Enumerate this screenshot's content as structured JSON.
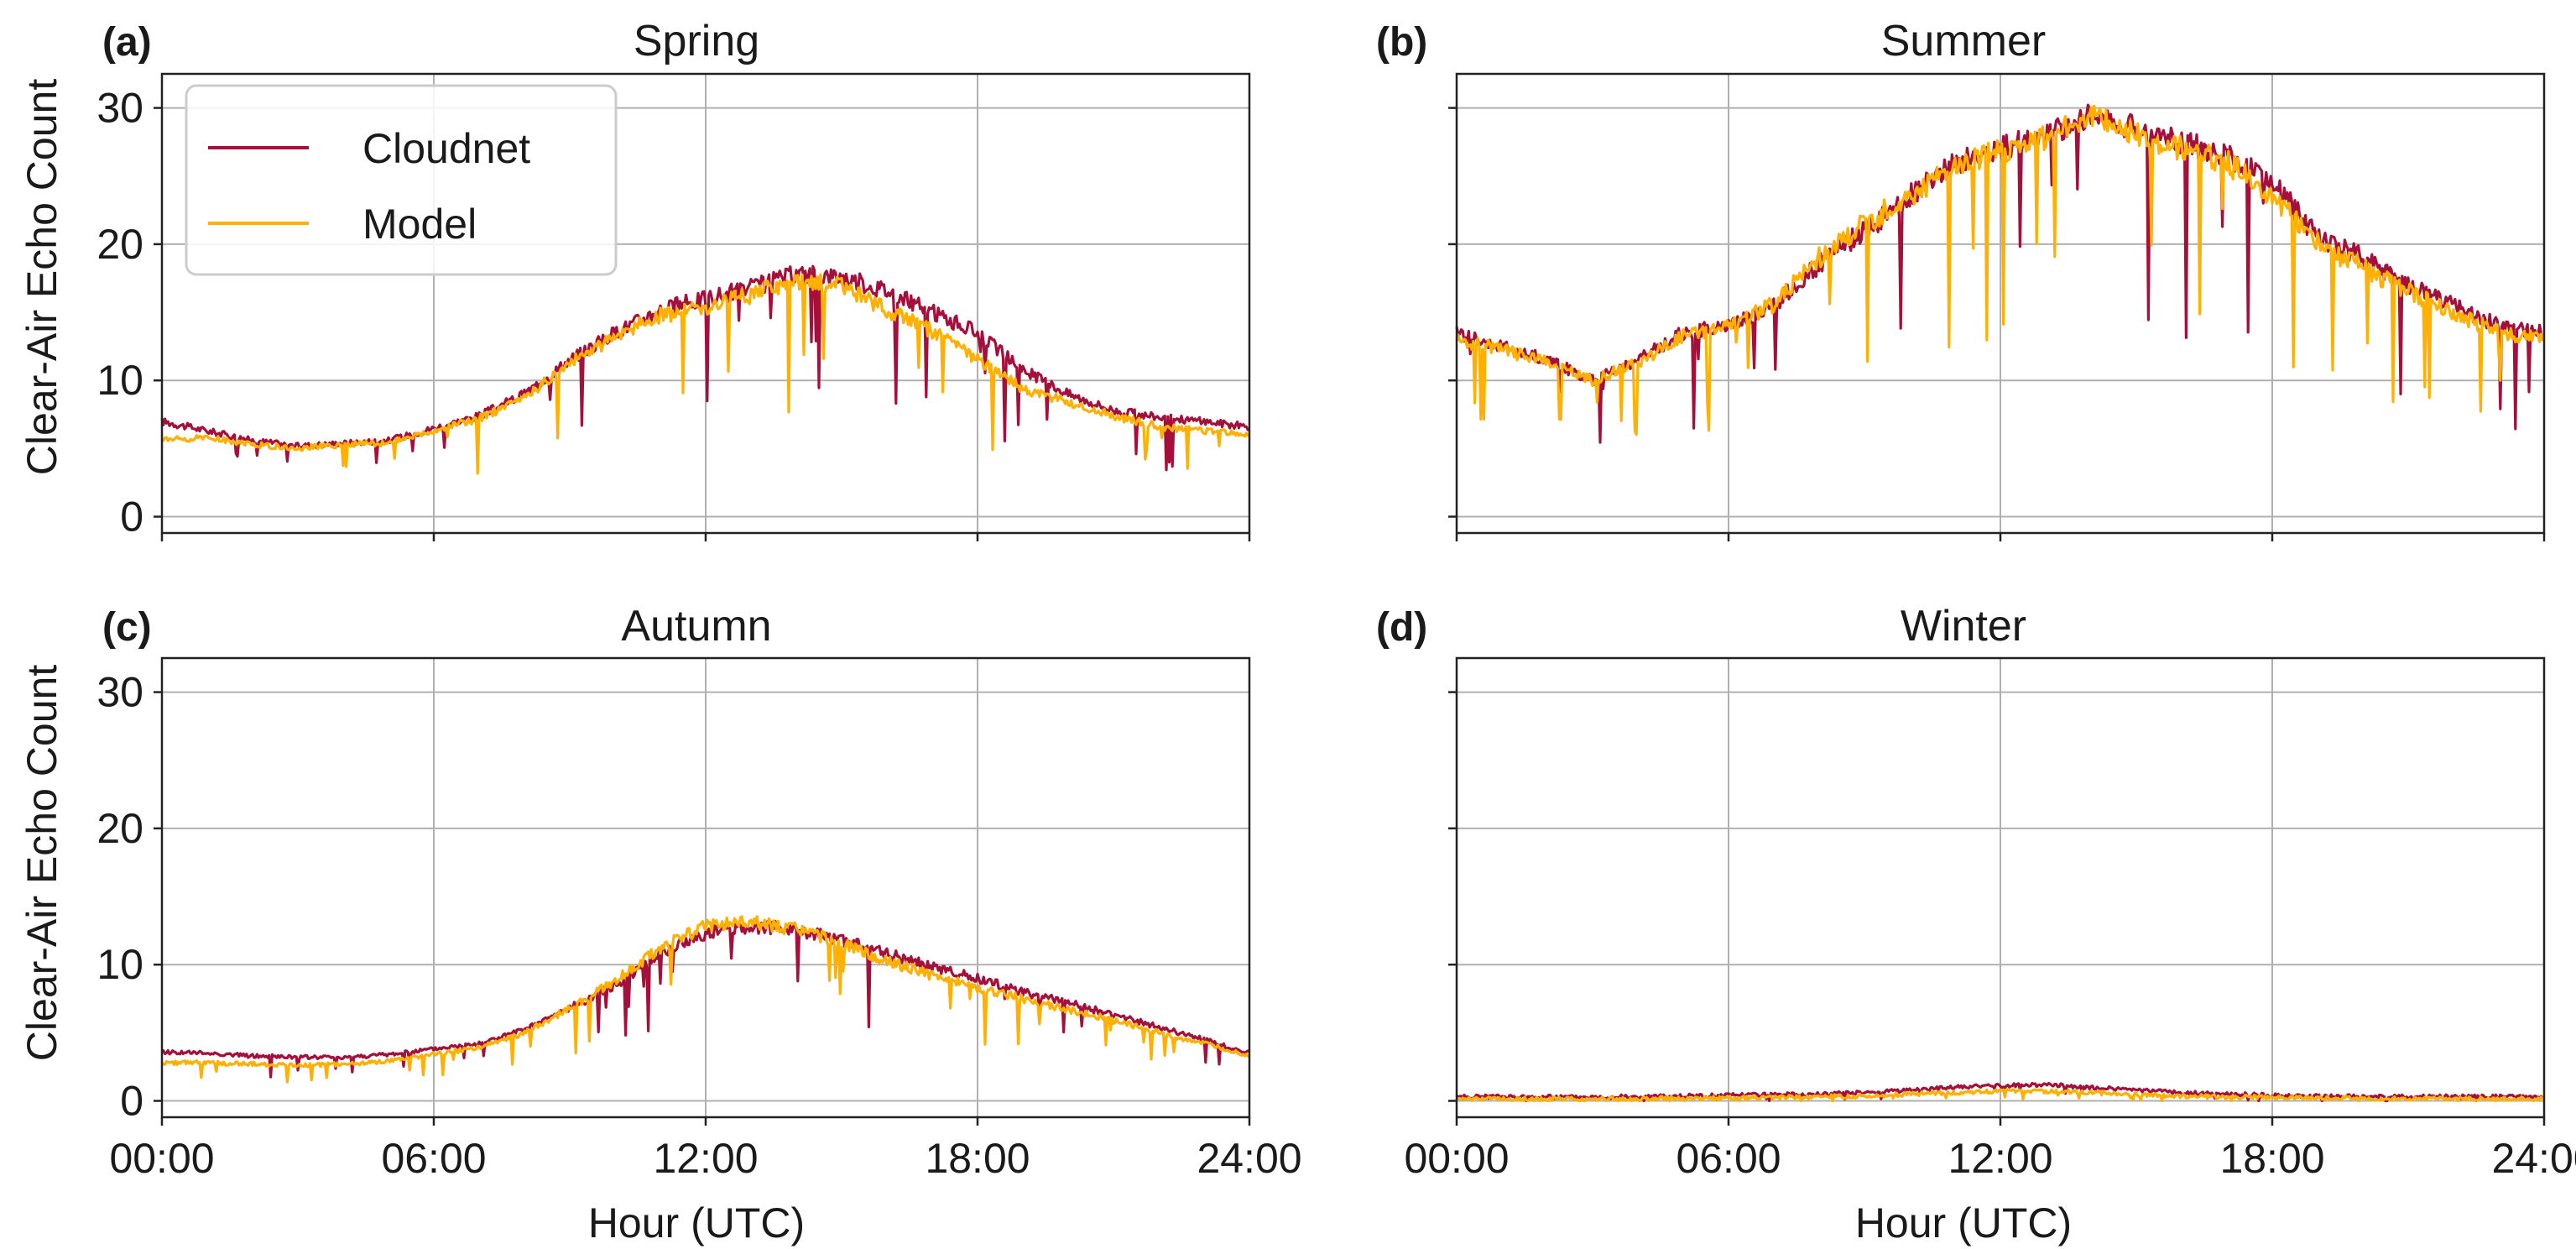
{
  "chart_data": {
    "type": "line",
    "layout": "2x2",
    "shared_ylabel": "Clear-Air Echo Count",
    "shared_xlabel": "Hour (UTC)",
    "x_unit": "hours",
    "xlim": [
      0,
      24
    ],
    "ylim": [
      -1.2,
      32.5
    ],
    "xticks": [
      0,
      6,
      12,
      18,
      24
    ],
    "xtick_labels": [
      "00:00",
      "06:00",
      "12:00",
      "18:00",
      "24:00"
    ],
    "yticks": [
      0,
      10,
      20,
      30
    ],
    "ytick_labels": [
      "0",
      "10",
      "20",
      "30"
    ],
    "grid": true,
    "legend": {
      "placement": "upper-left of panel (a)",
      "entries": [
        {
          "label": "Cloudnet",
          "color": "#a50f3c"
        },
        {
          "label": "Model",
          "color": "#ffb000"
        }
      ]
    },
    "series_colors": {
      "Cloudnet": "#a50f3c",
      "Model": "#ffb000"
    },
    "panels": [
      {
        "label": "(a)",
        "title": "Spring",
        "x": [
          0,
          1,
          2,
          3,
          4,
          5,
          6,
          7,
          8,
          9,
          10,
          11,
          12,
          13,
          14,
          15,
          16,
          17,
          18,
          19,
          20,
          21,
          22,
          23,
          24
        ],
        "series": [
          {
            "name": "Cloudnet",
            "values": [
              7.0,
              6.3,
              5.6,
              5.2,
              5.4,
              5.6,
              6.5,
              7.4,
              9.0,
              11.5,
              13.5,
              15.2,
              16.0,
              16.8,
              17.8,
              17.6,
              16.6,
              15.0,
              13.5,
              10.8,
              9.0,
              7.8,
              7.3,
              7.0,
              6.6
            ]
          },
          {
            "name": "Model",
            "values": [
              5.6,
              5.8,
              5.3,
              5.0,
              5.3,
              5.4,
              6.3,
              7.2,
              8.7,
              11.3,
              13.2,
              14.8,
              15.3,
              16.3,
              17.3,
              16.9,
              15.2,
              13.6,
              11.5,
              9.4,
              8.4,
              7.4,
              6.6,
              6.3,
              6.0
            ]
          }
        ]
      },
      {
        "label": "(b)",
        "title": "Summer",
        "x": [
          0,
          1,
          2,
          3,
          4,
          5,
          6,
          7,
          8,
          9,
          10,
          11,
          12,
          13,
          14,
          15,
          16,
          17,
          18,
          19,
          20,
          21,
          22,
          23,
          24
        ],
        "series": [
          {
            "name": "Cloudnet",
            "values": [
              13.5,
              12.5,
              11.5,
              10.0,
              11.5,
              13.5,
              14.0,
              15.5,
              18.5,
              21.0,
              23.5,
              26.0,
              27.0,
              28.0,
              29.5,
              28.5,
              27.5,
              26.5,
              24.5,
              20.5,
              19.0,
              17.0,
              15.5,
              14.0,
              13.5
            ]
          },
          {
            "name": "Model",
            "values": [
              13.0,
              12.3,
              11.3,
              10.0,
              11.3,
              13.3,
              14.0,
              15.6,
              19.0,
              21.5,
              23.5,
              25.8,
              26.8,
              27.8,
              29.6,
              28.0,
              27.0,
              26.0,
              23.5,
              20.0,
              18.3,
              16.5,
              15.0,
              13.5,
              13.0
            ]
          }
        ]
      },
      {
        "label": "(c)",
        "title": "Autumn",
        "x": [
          0,
          1,
          2,
          3,
          4,
          5,
          6,
          7,
          8,
          9,
          10,
          11,
          12,
          13,
          14,
          15,
          16,
          17,
          18,
          19,
          20,
          21,
          22,
          23,
          24
        ],
        "series": [
          {
            "name": "Cloudnet",
            "values": [
              3.6,
              3.5,
              3.3,
              3.2,
              3.2,
              3.4,
              3.8,
              4.2,
              5.2,
              6.8,
              8.5,
              10.8,
              12.3,
              12.8,
              12.6,
              11.8,
              10.8,
              9.8,
              9.0,
              8.0,
              7.2,
              6.3,
              5.4,
              4.5,
              3.5
            ]
          },
          {
            "name": "Model",
            "values": [
              2.8,
              2.8,
              2.7,
              2.6,
              2.7,
              2.9,
              3.4,
              3.9,
              5.0,
              6.8,
              8.8,
              11.2,
              12.9,
              13.1,
              12.6,
              11.5,
              10.3,
              9.2,
              8.3,
              7.5,
              6.7,
              5.9,
              5.0,
              4.2,
              3.3
            ]
          }
        ]
      },
      {
        "label": "(d)",
        "title": "Winter",
        "x": [
          0,
          1,
          2,
          3,
          4,
          5,
          6,
          7,
          8,
          9,
          10,
          11,
          12,
          13,
          14,
          15,
          16,
          17,
          18,
          19,
          20,
          21,
          22,
          23,
          24
        ],
        "series": [
          {
            "name": "Cloudnet",
            "values": [
              0.3,
              0.3,
              0.3,
              0.3,
              0.3,
              0.35,
              0.4,
              0.45,
              0.5,
              0.6,
              0.8,
              1.0,
              1.1,
              1.2,
              1.0,
              0.8,
              0.6,
              0.5,
              0.4,
              0.35,
              0.3,
              0.3,
              0.3,
              0.3,
              0.3
            ]
          },
          {
            "name": "Model",
            "values": [
              0.15,
              0.15,
              0.15,
              0.15,
              0.15,
              0.2,
              0.2,
              0.25,
              0.3,
              0.35,
              0.5,
              0.6,
              0.7,
              0.7,
              0.6,
              0.45,
              0.35,
              0.3,
              0.25,
              0.2,
              0.2,
              0.15,
              0.15,
              0.15,
              0.15
            ]
          }
        ]
      }
    ]
  }
}
